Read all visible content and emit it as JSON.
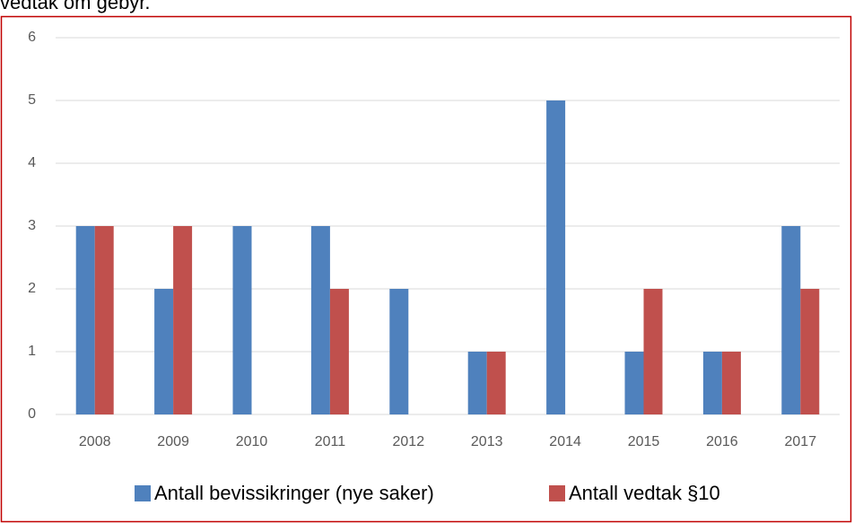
{
  "header_text": "vedtak om gebyr.",
  "chart_data": {
    "type": "bar",
    "categories": [
      "2008",
      "2009",
      "2010",
      "2011",
      "2012",
      "2013",
      "2014",
      "2015",
      "2016",
      "2017"
    ],
    "series": [
      {
        "name": "Antall bevissikringer (nye saker)",
        "color": "#4f81bd",
        "values": [
          3,
          2,
          3,
          3,
          2,
          1,
          5,
          1,
          1,
          3
        ]
      },
      {
        "name": "Antall vedtak §10",
        "color": "#c0504d",
        "values": [
          3,
          3,
          0,
          2,
          0,
          1,
          0,
          2,
          1,
          2
        ]
      }
    ],
    "ylim": [
      0,
      6
    ],
    "yticks": [
      0,
      1,
      2,
      3,
      4,
      5,
      6
    ],
    "grid": true,
    "legend": "bottom"
  }
}
